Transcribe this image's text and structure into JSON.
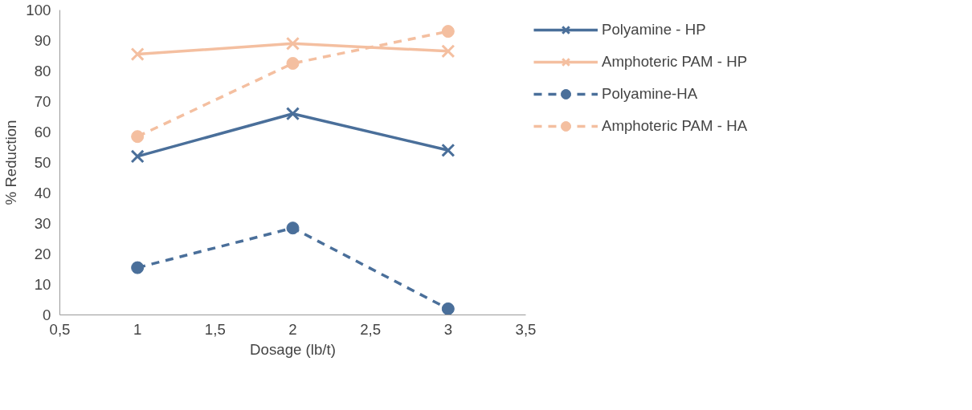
{
  "chart_data": {
    "type": "line",
    "xlabel": "Dosage (lb/t)",
    "ylabel": "% Reduction",
    "x": [
      1,
      2,
      3
    ],
    "xlim": [
      0.5,
      3.5
    ],
    "xticks": [
      {
        "value": 0.5,
        "label": "0,5"
      },
      1,
      {
        "value": 1.5,
        "label": "1,5"
      },
      2,
      {
        "value": 2.5,
        "label": "2,5"
      },
      3,
      {
        "value": 3.5,
        "label": "3,5"
      }
    ],
    "ylim": [
      0,
      100
    ],
    "yticks": [
      0,
      10,
      20,
      30,
      40,
      50,
      60,
      70,
      80,
      90,
      100
    ],
    "grid": false,
    "legend": "right",
    "series": [
      {
        "name": "Polyamine - HP",
        "color": "#4a6f9a",
        "values": [
          52,
          66,
          54
        ],
        "marker": "cross",
        "line_style": "solid"
      },
      {
        "name": "Amphoteric PAM - HP",
        "color": "#f4bfa0",
        "values": [
          85.5,
          89,
          86.5
        ],
        "marker": "cross",
        "line_style": "solid"
      },
      {
        "name": "Polyamine-HA",
        "color": "#4a6f9a",
        "values": [
          15.5,
          28.5,
          2
        ],
        "marker": "circle",
        "line_style": "dashed"
      },
      {
        "name": "Amphoteric PAM - HA",
        "color": "#f4bfa0",
        "values": [
          58.5,
          82.5,
          93
        ],
        "marker": "circle",
        "line_style": "dashed"
      }
    ]
  }
}
